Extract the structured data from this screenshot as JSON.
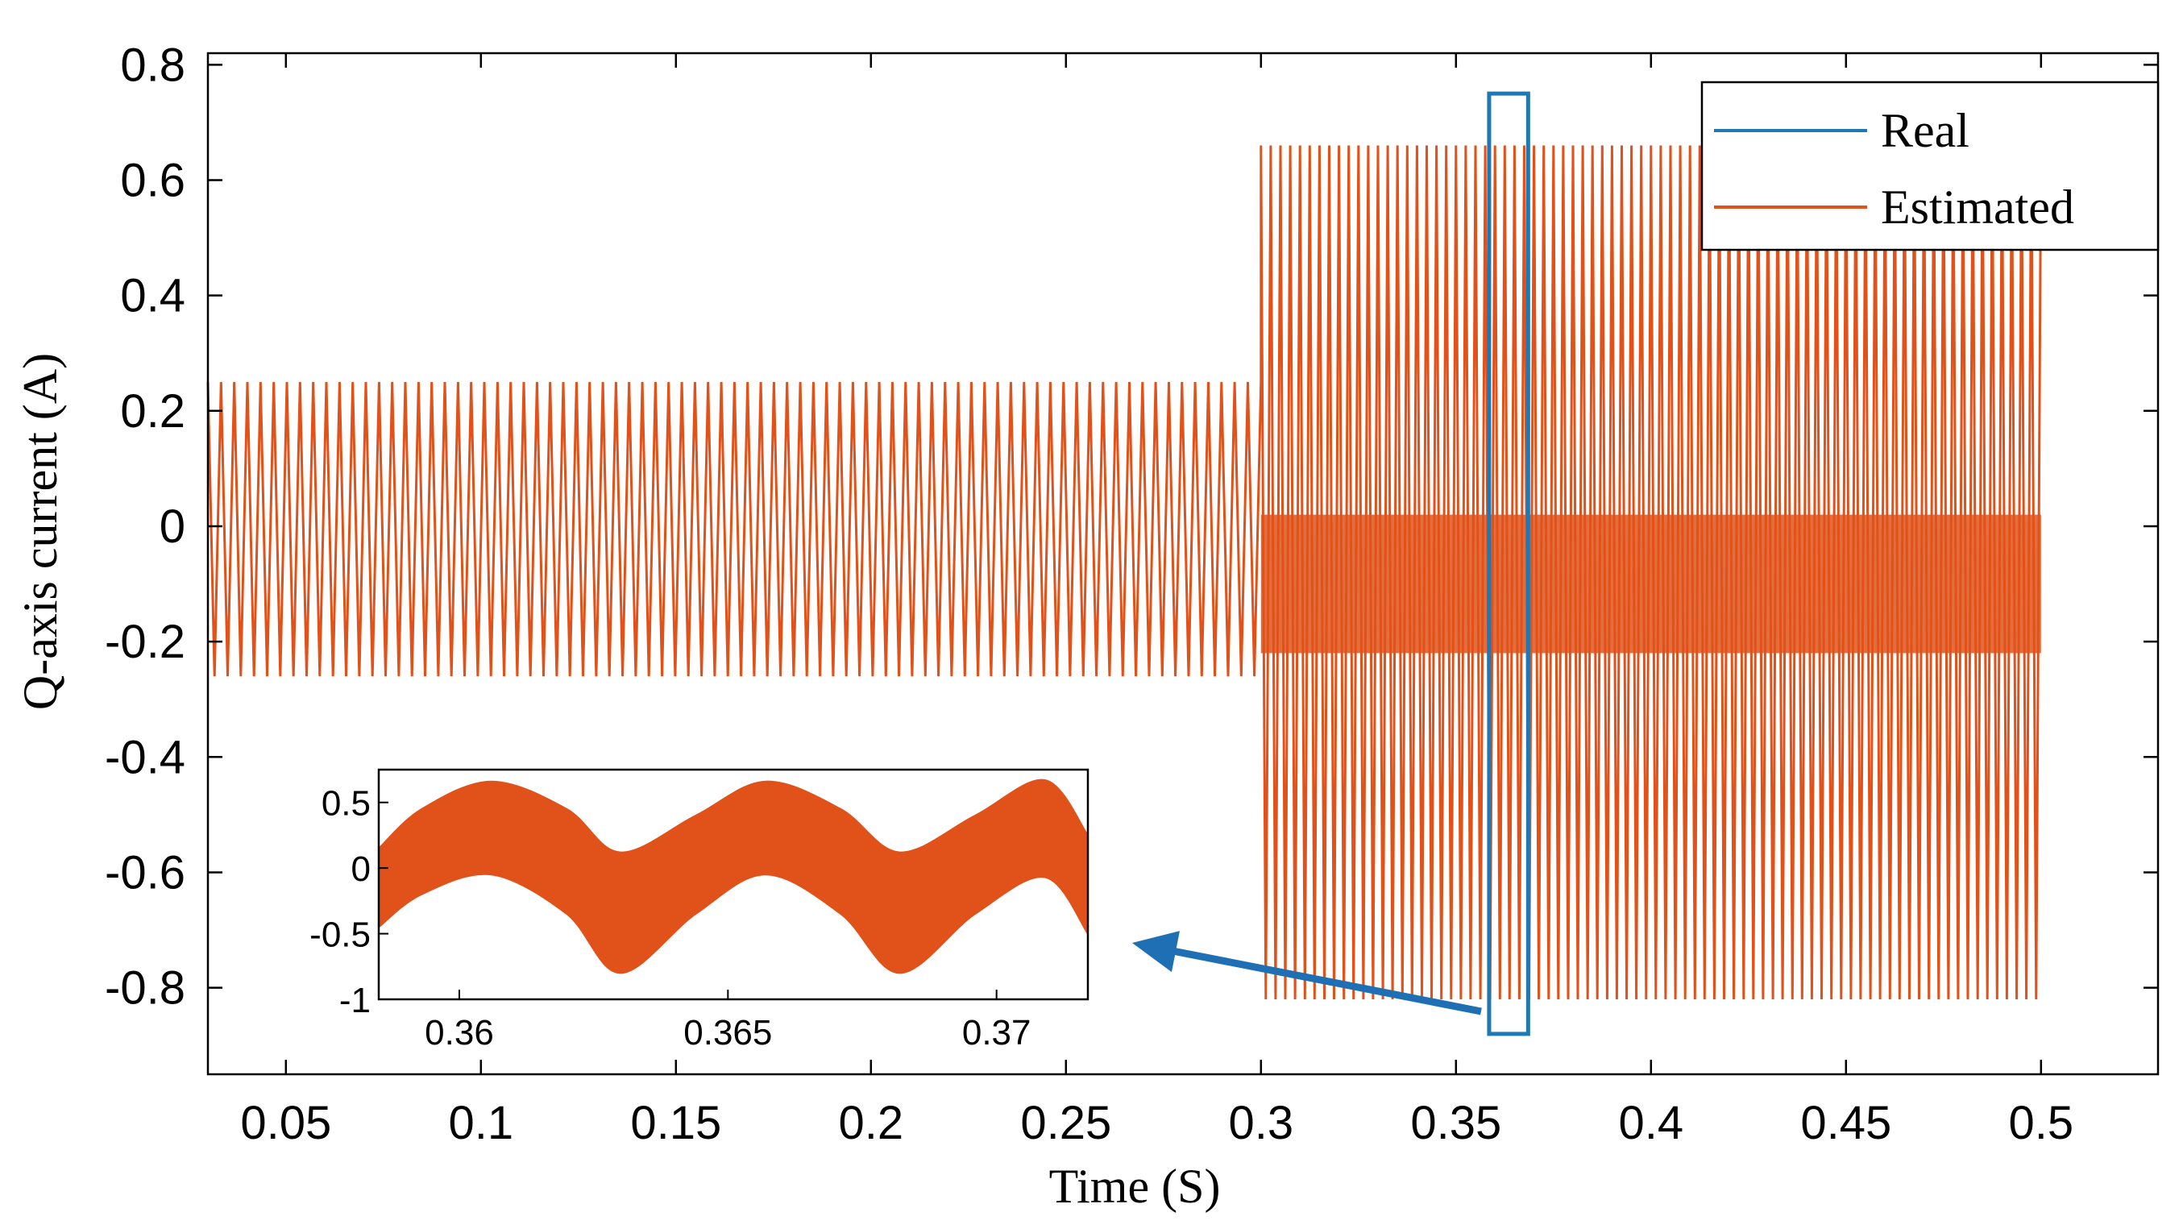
{
  "chart_data": {
    "type": "line",
    "xlabel": "Time (S)",
    "ylabel": "Q-axis current (A)",
    "xlim": [
      0.03,
      0.53
    ],
    "ylim": [
      -0.95,
      0.82
    ],
    "xticks": [
      0.05,
      0.1,
      0.15,
      0.2,
      0.25,
      0.3,
      0.35,
      0.4,
      0.45,
      0.5
    ],
    "xtick_labels": [
      "0.05",
      "0.1",
      "0.15",
      "0.2",
      "0.25",
      "0.3",
      "0.35",
      "0.4",
      "0.45",
      "0.5"
    ],
    "yticks": [
      0.8,
      0.6,
      0.4,
      0.2,
      0,
      -0.2,
      -0.4,
      -0.6,
      -0.8
    ],
    "ytick_labels": [
      "0.8",
      "0.6",
      "0.4",
      "0.2",
      "0",
      "-0.2",
      "-0.4",
      "-0.6",
      "-0.8"
    ],
    "grid": false,
    "legend_position": "top-right",
    "series": [
      {
        "name": "Real",
        "color": "#1f77b4",
        "segments": [
          {
            "x_range": [
              0.03,
              0.3
            ],
            "oscillation": {
              "max": 0.25,
              "min": -0.26,
              "center": 0.0,
              "cycles": 80
            }
          },
          {
            "x_range": [
              0.3,
              0.5
            ],
            "oscillation": {
              "max": 0.66,
              "min": -0.82,
              "center": -0.08,
              "cycles": 80
            }
          }
        ]
      },
      {
        "name": "Estimated",
        "color": "#e0521a",
        "segments": [
          {
            "x_range": [
              0.03,
              0.3
            ],
            "oscillation": {
              "max": 0.25,
              "min": -0.26,
              "center": 0.0,
              "cycles": 80
            }
          },
          {
            "x_range": [
              0.3,
              0.5
            ],
            "oscillation": {
              "max": 0.66,
              "min": -0.82,
              "center": -0.08,
              "cycles": 80
            }
          }
        ]
      }
    ],
    "highlight_box": {
      "x_range": [
        0.3585,
        0.3685
      ],
      "y_range": [
        -0.88,
        0.75
      ],
      "color": "#1f77b4"
    },
    "inset": {
      "xlim": [
        0.3585,
        0.3717
      ],
      "ylim": [
        -1,
        0.75
      ],
      "xticks": [
        0.36,
        0.365,
        0.37
      ],
      "xtick_labels": [
        "0.36",
        "0.365",
        "0.37"
      ],
      "yticks": [
        0.5,
        0,
        -0.5,
        -1
      ],
      "ytick_labels": [
        "0.5",
        "0",
        "-0.5",
        "-1"
      ],
      "band": {
        "upper": [
          [
            0.3585,
            0.15
          ],
          [
            0.3593,
            0.45
          ],
          [
            0.3606,
            0.66
          ],
          [
            0.362,
            0.45
          ],
          [
            0.363,
            0.12
          ],
          [
            0.3644,
            0.4
          ],
          [
            0.3657,
            0.66
          ],
          [
            0.3671,
            0.45
          ],
          [
            0.3682,
            0.12
          ],
          [
            0.3696,
            0.4
          ],
          [
            0.3709,
            0.67
          ],
          [
            0.3717,
            0.25
          ]
        ],
        "lower": [
          [
            0.3585,
            -0.45
          ],
          [
            0.3593,
            -0.2
          ],
          [
            0.3606,
            -0.05
          ],
          [
            0.362,
            -0.35
          ],
          [
            0.363,
            -0.8
          ],
          [
            0.3644,
            -0.35
          ],
          [
            0.3657,
            -0.05
          ],
          [
            0.3671,
            -0.35
          ],
          [
            0.3682,
            -0.8
          ],
          [
            0.3696,
            -0.35
          ],
          [
            0.3709,
            -0.07
          ],
          [
            0.3717,
            -0.5
          ]
        ],
        "color": "#e0521a"
      }
    }
  }
}
